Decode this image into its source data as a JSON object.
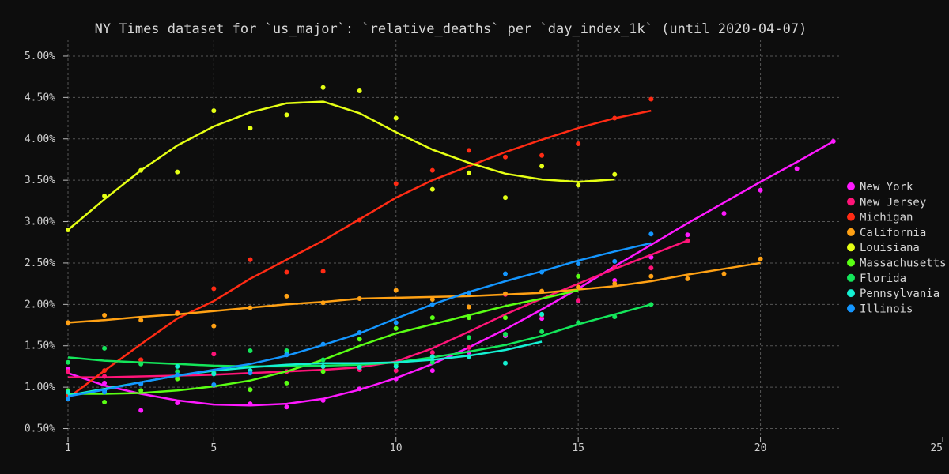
{
  "chart_data": {
    "type": "line",
    "title": "NY Times dataset for `us_major`: `relative_deaths` per `day_index_1k` (until 2020-04-07)",
    "xlabel": "",
    "ylabel": "",
    "xlim": [
      1,
      25
    ],
    "ylim": [
      0.4,
      5.2
    ],
    "x_ticks": [
      1,
      5,
      10,
      15,
      20,
      25
    ],
    "y_ticks": [
      0.5,
      1.0,
      1.5,
      2.0,
      2.5,
      3.0,
      3.5,
      4.0,
      4.5,
      5.0
    ],
    "x_tick_labels": [
      "1",
      "5",
      "10",
      "15",
      "20",
      "25"
    ],
    "y_tick_labels": [
      "0.50%",
      "1.00%",
      "1.50%",
      "2.00%",
      "2.50%",
      "3.00%",
      "3.50%",
      "4.00%",
      "4.50%",
      "5.00%"
    ],
    "grid": true,
    "legend_position": "right",
    "series": [
      {
        "name": "New York",
        "color": "#ff19ff",
        "points": [
          [
            1,
            1.22
          ],
          [
            2,
            1.05
          ],
          [
            3,
            0.72
          ],
          [
            4,
            0.81
          ],
          [
            5,
            1.02
          ],
          [
            6,
            0.8
          ],
          [
            7,
            0.76
          ],
          [
            8,
            0.84
          ],
          [
            9,
            0.98
          ],
          [
            10,
            1.1
          ],
          [
            11,
            1.2
          ],
          [
            12,
            1.42
          ],
          [
            13,
            1.62
          ],
          [
            14,
            1.83
          ],
          [
            15,
            2.04
          ],
          [
            16,
            2.29
          ],
          [
            17,
            2.57
          ],
          [
            18,
            2.84
          ],
          [
            19,
            3.1
          ],
          [
            20,
            3.38
          ],
          [
            21,
            3.64
          ],
          [
            22,
            3.97
          ]
        ],
        "trend": [
          [
            1,
            1.17
          ],
          [
            2,
            1.02
          ],
          [
            3,
            0.92
          ],
          [
            4,
            0.84
          ],
          [
            5,
            0.79
          ],
          [
            6,
            0.78
          ],
          [
            7,
            0.8
          ],
          [
            8,
            0.86
          ],
          [
            9,
            0.97
          ],
          [
            10,
            1.11
          ],
          [
            11,
            1.28
          ],
          [
            12,
            1.48
          ],
          [
            13,
            1.7
          ],
          [
            14,
            1.94
          ],
          [
            15,
            2.19
          ],
          [
            16,
            2.46
          ],
          [
            17,
            2.72
          ],
          [
            18,
            2.98
          ],
          [
            19,
            3.23
          ],
          [
            20,
            3.48
          ],
          [
            21,
            3.72
          ],
          [
            22,
            3.97
          ]
        ]
      },
      {
        "name": "New Jersey",
        "color": "#ff1478",
        "points": [
          [
            1,
            1.19
          ],
          [
            2,
            1.13
          ],
          [
            3,
            1.33
          ],
          [
            4,
            1.13
          ],
          [
            5,
            1.4
          ],
          [
            6,
            2.54
          ],
          [
            7,
            1.19
          ],
          [
            8,
            1.2
          ],
          [
            9,
            1.21
          ],
          [
            10,
            1.2
          ],
          [
            11,
            1.42
          ],
          [
            12,
            1.48
          ],
          [
            13,
            2.12
          ],
          [
            14,
            1.87
          ],
          [
            15,
            2.05
          ],
          [
            16,
            2.45
          ],
          [
            17,
            2.44
          ],
          [
            18,
            2.77
          ]
        ],
        "trend": [
          [
            1,
            1.12
          ],
          [
            2,
            1.12
          ],
          [
            3,
            1.13
          ],
          [
            4,
            1.14
          ],
          [
            5,
            1.15
          ],
          [
            6,
            1.17
          ],
          [
            7,
            1.19
          ],
          [
            8,
            1.21
          ],
          [
            9,
            1.24
          ],
          [
            10,
            1.31
          ],
          [
            11,
            1.47
          ],
          [
            12,
            1.67
          ],
          [
            13,
            1.88
          ],
          [
            14,
            2.07
          ],
          [
            15,
            2.25
          ],
          [
            16,
            2.43
          ],
          [
            17,
            2.6
          ],
          [
            18,
            2.77
          ]
        ]
      },
      {
        "name": "Michigan",
        "color": "#ff2b14",
        "points": [
          [
            1,
            0.9
          ],
          [
            2,
            1.2
          ],
          [
            3,
            1.33
          ],
          [
            4,
            1.9
          ],
          [
            5,
            2.19
          ],
          [
            6,
            2.54
          ],
          [
            7,
            2.39
          ],
          [
            8,
            2.4
          ],
          [
            9,
            3.02
          ],
          [
            10,
            3.46
          ],
          [
            11,
            3.62
          ],
          [
            12,
            3.86
          ],
          [
            13,
            3.78
          ],
          [
            14,
            3.8
          ],
          [
            15,
            3.94
          ],
          [
            16,
            4.25
          ],
          [
            17,
            4.48
          ]
        ],
        "trend": [
          [
            1,
            0.87
          ],
          [
            2,
            1.2
          ],
          [
            3,
            1.52
          ],
          [
            4,
            1.83
          ],
          [
            5,
            2.04
          ],
          [
            6,
            2.31
          ],
          [
            7,
            2.54
          ],
          [
            8,
            2.77
          ],
          [
            9,
            3.03
          ],
          [
            10,
            3.29
          ],
          [
            11,
            3.5
          ],
          [
            12,
            3.67
          ],
          [
            13,
            3.84
          ],
          [
            14,
            3.99
          ],
          [
            15,
            4.13
          ],
          [
            16,
            4.25
          ],
          [
            17,
            4.34
          ]
        ]
      },
      {
        "name": "California",
        "color": "#ffa114",
        "points": [
          [
            1,
            1.78
          ],
          [
            2,
            1.87
          ],
          [
            3,
            1.81
          ],
          [
            4,
            1.89
          ],
          [
            5,
            1.74
          ],
          [
            6,
            1.96
          ],
          [
            7,
            2.1
          ],
          [
            8,
            2.02
          ],
          [
            9,
            2.07
          ],
          [
            10,
            2.17
          ],
          [
            11,
            2.06
          ],
          [
            12,
            1.97
          ],
          [
            13,
            2.13
          ],
          [
            14,
            2.16
          ],
          [
            15,
            2.21
          ],
          [
            16,
            2.25
          ],
          [
            17,
            2.34
          ],
          [
            18,
            2.31
          ],
          [
            19,
            2.37
          ],
          [
            20,
            2.55
          ]
        ],
        "trend": [
          [
            1,
            1.78
          ],
          [
            2,
            1.81
          ],
          [
            3,
            1.85
          ],
          [
            4,
            1.88
          ],
          [
            5,
            1.92
          ],
          [
            6,
            1.96
          ],
          [
            7,
            2.0
          ],
          [
            8,
            2.03
          ],
          [
            9,
            2.07
          ],
          [
            10,
            2.08
          ],
          [
            11,
            2.09
          ],
          [
            12,
            2.1
          ],
          [
            13,
            2.12
          ],
          [
            14,
            2.14
          ],
          [
            15,
            2.18
          ],
          [
            16,
            2.22
          ],
          [
            17,
            2.28
          ],
          [
            18,
            2.36
          ],
          [
            19,
            2.43
          ],
          [
            20,
            2.5
          ]
        ]
      },
      {
        "name": "Louisiana",
        "color": "#e5ff14",
        "points": [
          [
            1,
            2.9
          ],
          [
            2,
            3.31
          ],
          [
            3,
            3.62
          ],
          [
            4,
            3.6
          ],
          [
            5,
            4.34
          ],
          [
            6,
            4.13
          ],
          [
            7,
            4.29
          ],
          [
            8,
            4.62
          ],
          [
            9,
            4.58
          ],
          [
            10,
            4.25
          ],
          [
            11,
            3.39
          ],
          [
            12,
            3.59
          ],
          [
            13,
            3.29
          ],
          [
            14,
            3.67
          ],
          [
            15,
            3.44
          ],
          [
            16,
            3.57
          ]
        ],
        "trend": [
          [
            1,
            2.9
          ],
          [
            2,
            3.27
          ],
          [
            3,
            3.62
          ],
          [
            4,
            3.92
          ],
          [
            5,
            4.15
          ],
          [
            6,
            4.32
          ],
          [
            7,
            4.43
          ],
          [
            8,
            4.45
          ],
          [
            9,
            4.31
          ],
          [
            10,
            4.08
          ],
          [
            11,
            3.87
          ],
          [
            12,
            3.71
          ],
          [
            13,
            3.58
          ],
          [
            14,
            3.51
          ],
          [
            15,
            3.48
          ],
          [
            16,
            3.51
          ]
        ]
      },
      {
        "name": "Massachusetts",
        "color": "#5aff14",
        "points": [
          [
            1,
            0.96
          ],
          [
            2,
            0.82
          ],
          [
            3,
            0.96
          ],
          [
            4,
            1.1
          ],
          [
            5,
            1.17
          ],
          [
            6,
            0.97
          ],
          [
            7,
            1.05
          ],
          [
            8,
            1.19
          ],
          [
            9,
            1.58
          ],
          [
            10,
            1.71
          ],
          [
            11,
            1.84
          ],
          [
            12,
            1.84
          ],
          [
            13,
            1.84
          ],
          [
            14,
            1.88
          ],
          [
            15,
            2.34
          ]
        ],
        "trend": [
          [
            1,
            0.92
          ],
          [
            2,
            0.92
          ],
          [
            3,
            0.93
          ],
          [
            4,
            0.96
          ],
          [
            5,
            1.01
          ],
          [
            6,
            1.08
          ],
          [
            7,
            1.19
          ],
          [
            8,
            1.33
          ],
          [
            9,
            1.5
          ],
          [
            10,
            1.65
          ],
          [
            11,
            1.76
          ],
          [
            12,
            1.87
          ],
          [
            13,
            1.98
          ],
          [
            14,
            2.07
          ],
          [
            15,
            2.17
          ]
        ]
      },
      {
        "name": "Florida",
        "color": "#14e65a",
        "points": [
          [
            1,
            1.3
          ],
          [
            2,
            1.47
          ],
          [
            3,
            1.28
          ],
          [
            4,
            1.19
          ],
          [
            5,
            1.17
          ],
          [
            6,
            1.44
          ],
          [
            7,
            1.44
          ],
          [
            8,
            1.33
          ],
          [
            9,
            1.26
          ],
          [
            10,
            1.28
          ],
          [
            11,
            1.3
          ],
          [
            12,
            1.6
          ],
          [
            13,
            1.64
          ],
          [
            14,
            1.67
          ],
          [
            15,
            1.78
          ],
          [
            16,
            1.85
          ],
          [
            17,
            2.0
          ]
        ],
        "trend": [
          [
            1,
            1.36
          ],
          [
            2,
            1.32
          ],
          [
            3,
            1.3
          ],
          [
            4,
            1.28
          ],
          [
            5,
            1.26
          ],
          [
            6,
            1.25
          ],
          [
            7,
            1.25
          ],
          [
            8,
            1.26
          ],
          [
            9,
            1.27
          ],
          [
            10,
            1.3
          ],
          [
            11,
            1.36
          ],
          [
            12,
            1.43
          ],
          [
            13,
            1.51
          ],
          [
            14,
            1.62
          ],
          [
            15,
            1.76
          ],
          [
            16,
            1.88
          ],
          [
            17,
            2.0
          ]
        ]
      },
      {
        "name": "Pennsylvania",
        "color": "#14f0d2",
        "points": [
          [
            1,
            0.94
          ],
          [
            2,
            0.96
          ],
          [
            3,
            1.04
          ],
          [
            4,
            1.25
          ],
          [
            5,
            1.16
          ],
          [
            6,
            1.2
          ],
          [
            7,
            1.4
          ],
          [
            8,
            1.25
          ],
          [
            9,
            1.24
          ],
          [
            10,
            1.25
          ],
          [
            11,
            1.37
          ],
          [
            12,
            1.37
          ],
          [
            13,
            1.29
          ],
          [
            14,
            1.88
          ]
        ],
        "trend": [
          [
            1,
            0.9
          ],
          [
            2,
            0.98
          ],
          [
            3,
            1.06
          ],
          [
            4,
            1.14
          ],
          [
            5,
            1.2
          ],
          [
            6,
            1.24
          ],
          [
            7,
            1.27
          ],
          [
            8,
            1.29
          ],
          [
            9,
            1.29
          ],
          [
            10,
            1.3
          ],
          [
            11,
            1.33
          ],
          [
            12,
            1.38
          ],
          [
            13,
            1.45
          ],
          [
            14,
            1.55
          ]
        ]
      },
      {
        "name": "Illinois",
        "color": "#1496ff",
        "points": [
          [
            1,
            0.86
          ],
          [
            2,
            0.94
          ],
          [
            3,
            1.04
          ],
          [
            4,
            1.15
          ],
          [
            5,
            1.03
          ],
          [
            6,
            1.17
          ],
          [
            7,
            1.39
          ],
          [
            8,
            1.52
          ],
          [
            9,
            1.66
          ],
          [
            10,
            1.78
          ],
          [
            11,
            2.0
          ],
          [
            12,
            2.14
          ],
          [
            13,
            2.37
          ],
          [
            14,
            2.39
          ],
          [
            15,
            2.49
          ],
          [
            16,
            2.52
          ],
          [
            17,
            2.85
          ]
        ],
        "trend": [
          [
            1,
            0.89
          ],
          [
            2,
            0.97
          ],
          [
            3,
            1.06
          ],
          [
            4,
            1.14
          ],
          [
            5,
            1.21
          ],
          [
            6,
            1.28
          ],
          [
            7,
            1.38
          ],
          [
            8,
            1.51
          ],
          [
            9,
            1.65
          ],
          [
            10,
            1.83
          ],
          [
            11,
            2.0
          ],
          [
            12,
            2.15
          ],
          [
            13,
            2.28
          ],
          [
            14,
            2.4
          ],
          [
            15,
            2.53
          ],
          [
            16,
            2.64
          ],
          [
            17,
            2.74
          ]
        ]
      }
    ]
  }
}
